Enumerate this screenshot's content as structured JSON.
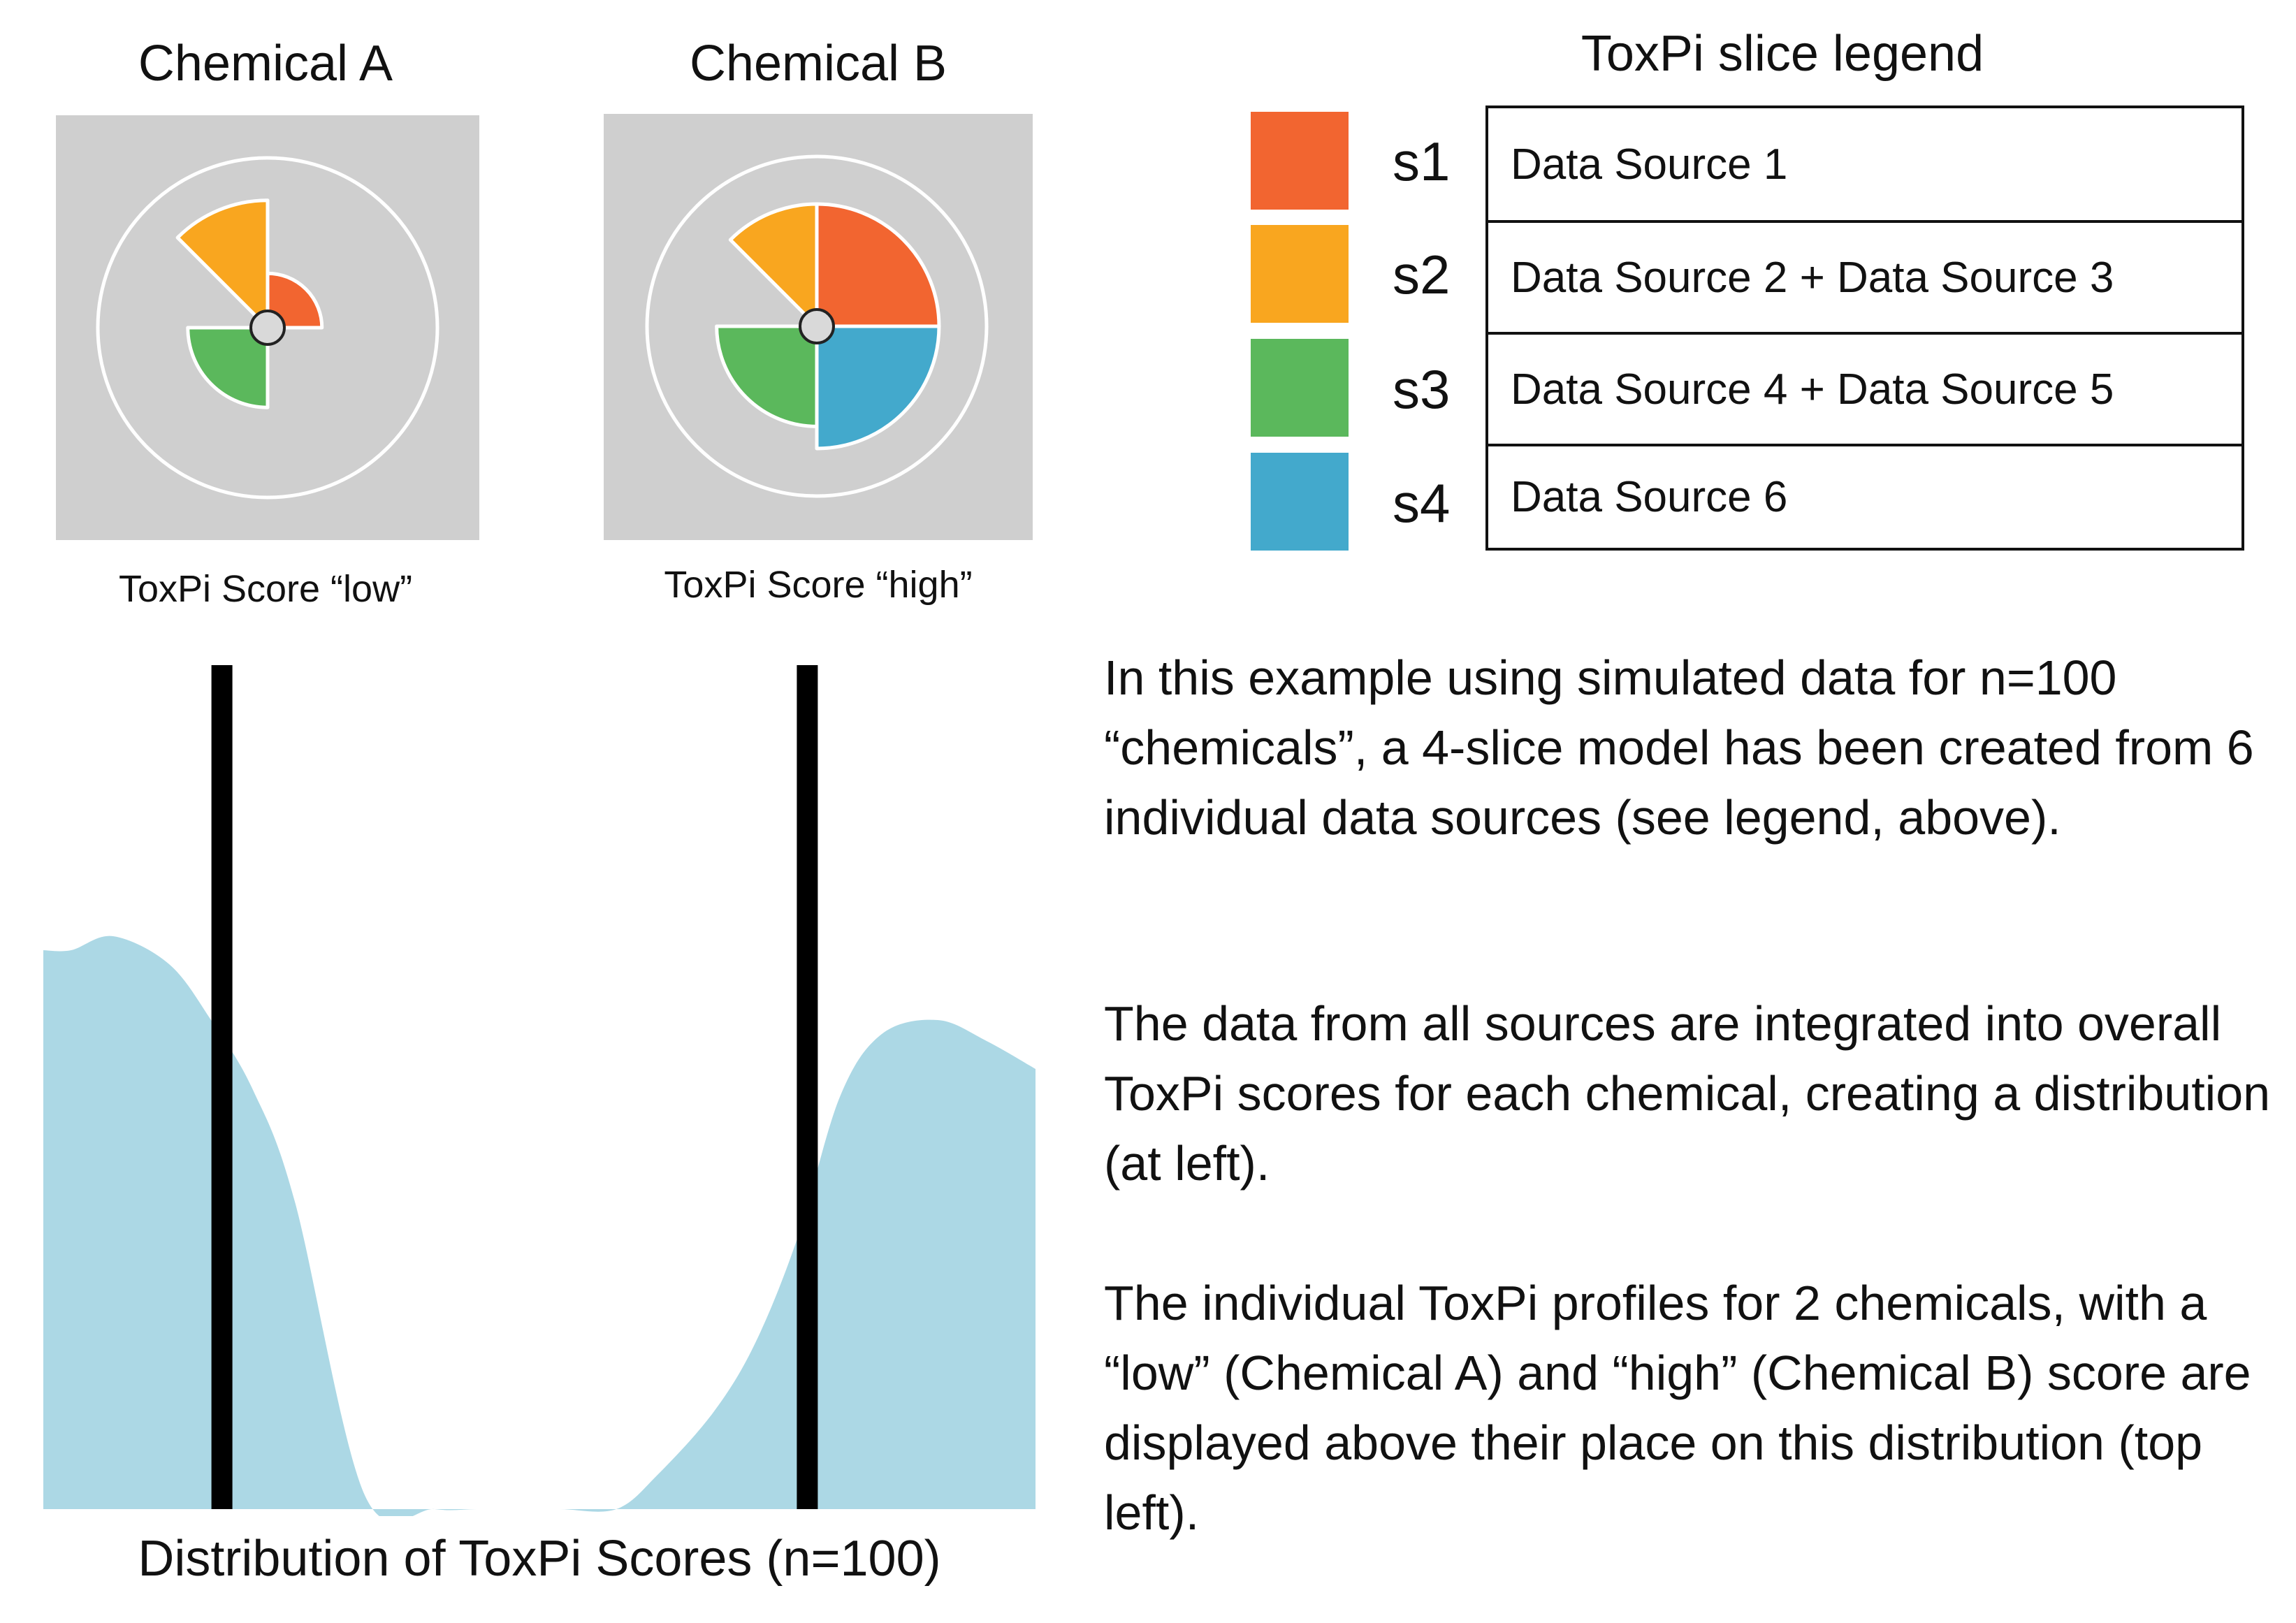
{
  "chemicals": [
    {
      "title": "Chemical A",
      "score_label": "ToxPi Score “low”",
      "slices": [
        {
          "id": "s1",
          "value": 0.32
        },
        {
          "id": "s2",
          "value": 0.75
        },
        {
          "id": "s3",
          "value": 0.47
        },
        {
          "id": "s4",
          "value": 0.0
        }
      ]
    },
    {
      "title": "Chemical B",
      "score_label": "ToxPi Score “high”",
      "slices": [
        {
          "id": "s1",
          "value": 0.72
        },
        {
          "id": "s2",
          "value": 0.72
        },
        {
          "id": "s3",
          "value": 0.59
        },
        {
          "id": "s4",
          "value": 0.72
        }
      ]
    }
  ],
  "legend": {
    "title": "ToxPi slice legend",
    "items": [
      {
        "id": "s1",
        "label": "Data Source 1",
        "color": "#f26530"
      },
      {
        "id": "s2",
        "label": "Data Source 2 + Data Source 3",
        "color": "#f9a61f"
      },
      {
        "id": "s3",
        "label": "Data Source 4 + Data Source 5",
        "color": "#5bb85c"
      },
      {
        "id": "s4",
        "label": "Data Source 6",
        "color": "#43a9cc"
      }
    ]
  },
  "paragraphs": [
    "In this example using simulated data for n=100 “chemicals”, a 4-slice model has been created from 6 individual data sources (see legend, above).",
    "The data from all sources are integrated into overall ToxPi scores for each chemical, creating a distribution (at left).",
    "The individual ToxPi profiles for 2 chemicals, with a “low” (Chemical A) and “high” (Chemical B) score are displayed above their place on this distribution (top left)."
  ],
  "distribution": {
    "caption": "Distribution of ToxPi Scores (n=100)",
    "fill_color": "#acd8e5",
    "marker_color": "#000000",
    "markers": [
      {
        "label": "Chemical A",
        "position": 0.18
      },
      {
        "label": "Chemical B",
        "position": 0.77
      }
    ]
  },
  "colors": {
    "panel_bg": "#cfcfcf",
    "outline": "#ffffff",
    "center_dot": "#d9d9d9"
  }
}
